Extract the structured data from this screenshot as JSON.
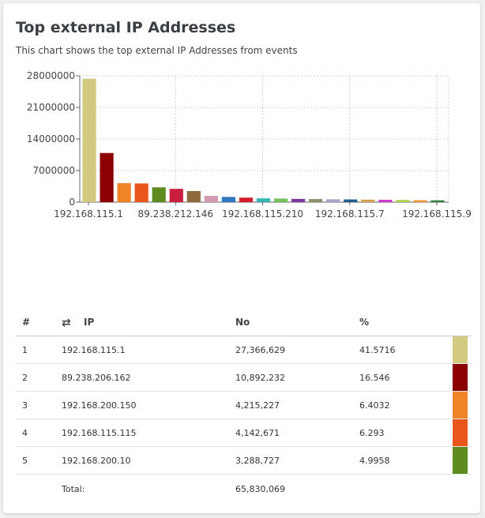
{
  "card": {
    "title": "Top external IP Addresses",
    "subtitle": "This chart shows the top external IP Addresses from events"
  },
  "chart_data": {
    "type": "bar",
    "ylim": [
      0,
      28000000
    ],
    "yticks": [
      0,
      7000000,
      14000000,
      21000000,
      28000000
    ],
    "grid": true,
    "x_tick_labels": [
      {
        "index": 0,
        "label": "192.168.115.1"
      },
      {
        "index": 5,
        "label": "89.238.212.146"
      },
      {
        "index": 10,
        "label": "192.168.115.210"
      },
      {
        "index": 15,
        "label": "192.168.115.7"
      },
      {
        "index": 20,
        "label": "192.168.115.9"
      }
    ],
    "values": [
      27366629,
      10892232,
      4215227,
      4142671,
      3288727,
      2950000,
      2450000,
      1400000,
      1150000,
      1000000,
      850000,
      800000,
      720000,
      680000,
      640000,
      600000,
      560000,
      520000,
      480000,
      440000,
      400000
    ],
    "colors": [
      "#d3c981",
      "#8b0000",
      "#ee8427",
      "#e8561b",
      "#5f8c1f",
      "#c91f3f",
      "#8d6a3b",
      "#d49ab2",
      "#2e76bf",
      "#d21e2a",
      "#35b5b3",
      "#71c25b",
      "#7a3aa0",
      "#8e8e6c",
      "#a6a2c9",
      "#1d5e8f",
      "#d5a24d",
      "#cf3ad3",
      "#a8d043",
      "#ef9a3c",
      "#2f7d3c"
    ]
  },
  "table": {
    "headers": {
      "rank": "#",
      "ip": "IP",
      "no": "No",
      "pct": "%",
      "swap_icon": "⇄"
    },
    "rows": [
      {
        "rank": "1",
        "ip": "192.168.115.1",
        "no": "27,366,629",
        "pct": "41.5716",
        "color": "#d3c981"
      },
      {
        "rank": "2",
        "ip": "89.238.206.162",
        "no": "10,892,232",
        "pct": "16.546",
        "color": "#8b0000"
      },
      {
        "rank": "3",
        "ip": "192.168.200.150",
        "no": "4,215,227",
        "pct": "6.4032",
        "color": "#ee8427"
      },
      {
        "rank": "4",
        "ip": "192.168.115.115",
        "no": "4,142,671",
        "pct": "6.293",
        "color": "#e8561b"
      },
      {
        "rank": "5",
        "ip": "192.168.200.10",
        "no": "3,288,727",
        "pct": "4.9958",
        "color": "#5f8c1f"
      }
    ],
    "total_label": "Total:",
    "total_value": "65,830,069"
  }
}
